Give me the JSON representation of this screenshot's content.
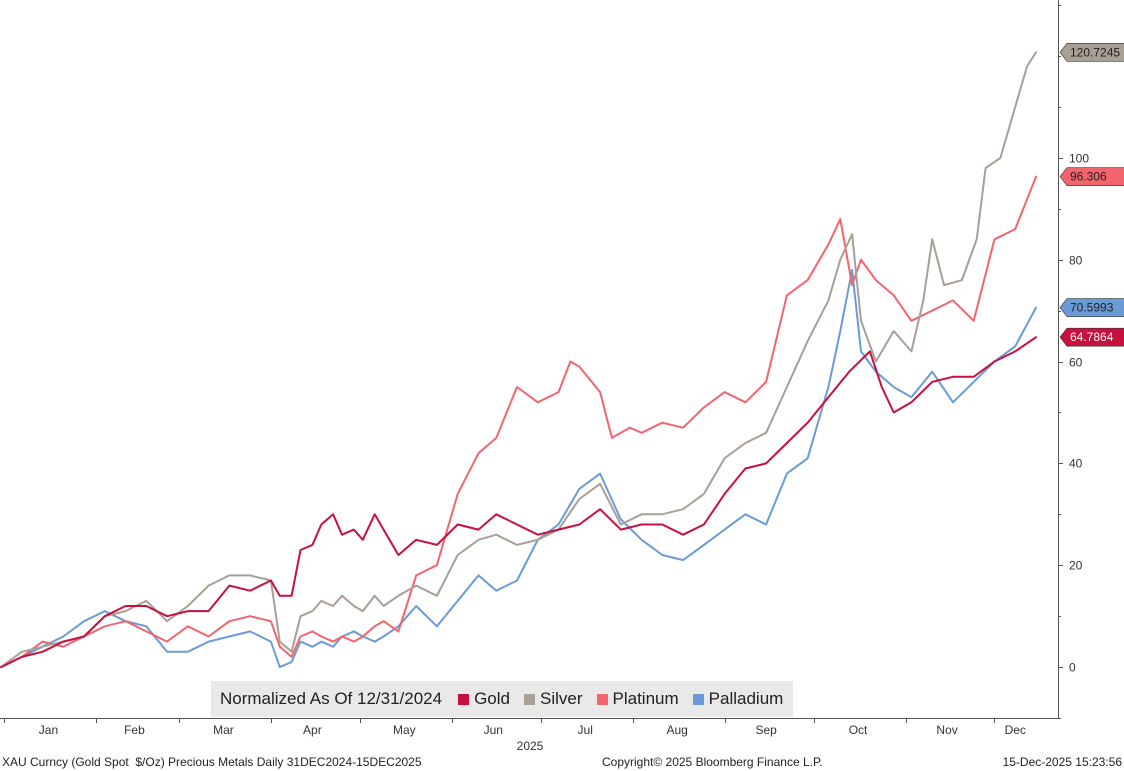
{
  "chart_data": {
    "type": "line",
    "title": "",
    "xlabel": "2025",
    "ylabel": "",
    "normalized_note": "Normalized As Of 12/31/2024",
    "x_range": [
      "2024-12-31",
      "2025-12-15"
    ],
    "ylim": [
      -10,
      131
    ],
    "y_ticks": [
      0,
      20,
      40,
      60,
      80,
      100
    ],
    "x_ticks": [
      {
        "date": "2025-01-16",
        "label": "Jan"
      },
      {
        "date": "2025-02-14",
        "label": "Feb"
      },
      {
        "date": "2025-03-16",
        "label": "Mar"
      },
      {
        "date": "2025-04-15",
        "label": "Apr"
      },
      {
        "date": "2025-05-16",
        "label": "May"
      },
      {
        "date": "2025-06-15",
        "label": "Jun"
      },
      {
        "date": "2025-07-16",
        "label": "Jul"
      },
      {
        "date": "2025-08-16",
        "label": "Aug"
      },
      {
        "date": "2025-09-15",
        "label": "Sep"
      },
      {
        "date": "2025-10-16",
        "label": "Oct"
      },
      {
        "date": "2025-11-15",
        "label": "Nov"
      },
      {
        "date": "2025-12-08",
        "label": "Dec"
      }
    ],
    "month_boundaries": [
      "2025-01-01",
      "2025-02-01",
      "2025-03-01",
      "2025-04-01",
      "2025-05-01",
      "2025-06-01",
      "2025-07-01",
      "2025-08-01",
      "2025-09-01",
      "2025-10-01",
      "2025-11-01",
      "2025-12-01"
    ],
    "grid": false,
    "legend_position": "bottom-center",
    "series": [
      {
        "name": "Gold",
        "color": "#c8103e",
        "end_label": "64.7864",
        "points": [
          [
            "2024-12-31",
            0
          ],
          [
            "2025-01-07",
            2
          ],
          [
            "2025-01-14",
            3
          ],
          [
            "2025-01-21",
            5
          ],
          [
            "2025-01-28",
            6
          ],
          [
            "2025-02-04",
            10
          ],
          [
            "2025-02-11",
            12
          ],
          [
            "2025-02-18",
            12
          ],
          [
            "2025-02-25",
            10
          ],
          [
            "2025-03-04",
            11
          ],
          [
            "2025-03-11",
            11
          ],
          [
            "2025-03-18",
            16
          ],
          [
            "2025-03-25",
            15
          ],
          [
            "2025-04-01",
            17
          ],
          [
            "2025-04-04",
            14
          ],
          [
            "2025-04-08",
            14
          ],
          [
            "2025-04-11",
            23
          ],
          [
            "2025-04-15",
            24
          ],
          [
            "2025-04-18",
            28
          ],
          [
            "2025-04-22",
            30
          ],
          [
            "2025-04-25",
            26
          ],
          [
            "2025-04-29",
            27
          ],
          [
            "2025-05-02",
            25
          ],
          [
            "2025-05-06",
            30
          ],
          [
            "2025-05-09",
            27
          ],
          [
            "2025-05-14",
            22
          ],
          [
            "2025-05-20",
            25
          ],
          [
            "2025-05-27",
            24
          ],
          [
            "2025-06-03",
            28
          ],
          [
            "2025-06-10",
            27
          ],
          [
            "2025-06-16",
            30
          ],
          [
            "2025-06-23",
            28
          ],
          [
            "2025-06-30",
            26
          ],
          [
            "2025-07-07",
            27
          ],
          [
            "2025-07-14",
            28
          ],
          [
            "2025-07-21",
            31
          ],
          [
            "2025-07-28",
            27
          ],
          [
            "2025-08-04",
            28
          ],
          [
            "2025-08-11",
            28
          ],
          [
            "2025-08-18",
            26
          ],
          [
            "2025-08-25",
            28
          ],
          [
            "2025-09-01",
            34
          ],
          [
            "2025-09-08",
            39
          ],
          [
            "2025-09-15",
            40
          ],
          [
            "2025-09-22",
            44
          ],
          [
            "2025-09-29",
            48
          ],
          [
            "2025-10-06",
            53
          ],
          [
            "2025-10-13,",
            58
          ],
          [
            "2025-10-20",
            62
          ],
          [
            "2025-10-24",
            55
          ],
          [
            "2025-10-28",
            50
          ],
          [
            "2025-11-03",
            52
          ],
          [
            "2025-11-10",
            56
          ],
          [
            "2025-11-17",
            57
          ],
          [
            "2025-11-24",
            57
          ],
          [
            "2025-12-01",
            60
          ],
          [
            "2025-12-08",
            62
          ],
          [
            "2025-12-15",
            64.7864
          ]
        ]
      },
      {
        "name": "Silver",
        "color": "#a89f95",
        "end_label": "120.7245",
        "points": [
          [
            "2024-12-31",
            0
          ],
          [
            "2025-01-07",
            3
          ],
          [
            "2025-01-14",
            4
          ],
          [
            "2025-01-21",
            5
          ],
          [
            "2025-01-28",
            6
          ],
          [
            "2025-02-04",
            10
          ],
          [
            "2025-02-11",
            11
          ],
          [
            "2025-02-18",
            13
          ],
          [
            "2025-02-25",
            9
          ],
          [
            "2025-03-04",
            12
          ],
          [
            "2025-03-11",
            16
          ],
          [
            "2025-03-18",
            18
          ],
          [
            "2025-03-25",
            18
          ],
          [
            "2025-04-01",
            17
          ],
          [
            "2025-04-04",
            5
          ],
          [
            "2025-04-08",
            3
          ],
          [
            "2025-04-11",
            10
          ],
          [
            "2025-04-15",
            11
          ],
          [
            "2025-04-18",
            13
          ],
          [
            "2025-04-22",
            12
          ],
          [
            "2025-04-25",
            14
          ],
          [
            "2025-04-29",
            12
          ],
          [
            "2025-05-02",
            11
          ],
          [
            "2025-05-06",
            14
          ],
          [
            "2025-05-09",
            12
          ],
          [
            "2025-05-14",
            14
          ],
          [
            "2025-05-20",
            16
          ],
          [
            "2025-05-27",
            14
          ],
          [
            "2025-06-03",
            22
          ],
          [
            "2025-06-10",
            25
          ],
          [
            "2025-06-16",
            26
          ],
          [
            "2025-06-23",
            24
          ],
          [
            "2025-06-30",
            25
          ],
          [
            "2025-07-07",
            27
          ],
          [
            "2025-07-14",
            33
          ],
          [
            "2025-07-21",
            36
          ],
          [
            "2025-07-28",
            28
          ],
          [
            "2025-08-04",
            30
          ],
          [
            "2025-08-11",
            30
          ],
          [
            "2025-08-18",
            31
          ],
          [
            "2025-08-25",
            34
          ],
          [
            "2025-09-01",
            41
          ],
          [
            "2025-09-08",
            44
          ],
          [
            "2025-09-15",
            46
          ],
          [
            "2025-09-22",
            55
          ],
          [
            "2025-09-29",
            64
          ],
          [
            "2025-10-06",
            72
          ],
          [
            "2025-10-10",
            80
          ],
          [
            "2025-10-14",
            85
          ],
          [
            "2025-10-17",
            68
          ],
          [
            "2025-10-22",
            60
          ],
          [
            "2025-10-28",
            66
          ],
          [
            "2025-11-03",
            62
          ],
          [
            "2025-11-07",
            72
          ],
          [
            "2025-11-10",
            84
          ],
          [
            "2025-11-14",
            75
          ],
          [
            "2025-11-20",
            76
          ],
          [
            "2025-11-25",
            84
          ],
          [
            "2025-11-28",
            98
          ],
          [
            "2025-12-03",
            100
          ],
          [
            "2025-12-08",
            110
          ],
          [
            "2025-12-12",
            118
          ],
          [
            "2025-12-15",
            120.7245
          ]
        ]
      },
      {
        "name": "Platinum",
        "color": "#f2656e",
        "end_label": "96.306",
        "points": [
          [
            "2024-12-31",
            0
          ],
          [
            "2025-01-07",
            2
          ],
          [
            "2025-01-14",
            5
          ],
          [
            "2025-01-21",
            4
          ],
          [
            "2025-01-28",
            6
          ],
          [
            "2025-02-04",
            8
          ],
          [
            "2025-02-11",
            9
          ],
          [
            "2025-02-18",
            7
          ],
          [
            "2025-02-25",
            5
          ],
          [
            "2025-03-04",
            8
          ],
          [
            "2025-03-11",
            6
          ],
          [
            "2025-03-18",
            9
          ],
          [
            "2025-03-25",
            10
          ],
          [
            "2025-04-01",
            9
          ],
          [
            "2025-04-04",
            4
          ],
          [
            "2025-04-08",
            2
          ],
          [
            "2025-04-11",
            6
          ],
          [
            "2025-04-15",
            7
          ],
          [
            "2025-04-18",
            6
          ],
          [
            "2025-04-22",
            5
          ],
          [
            "2025-04-25",
            6
          ],
          [
            "2025-04-29",
            5
          ],
          [
            "2025-05-02",
            6
          ],
          [
            "2025-05-06",
            8
          ],
          [
            "2025-05-09",
            9
          ],
          [
            "2025-05-14",
            7
          ],
          [
            "2025-05-20",
            18
          ],
          [
            "2025-05-27",
            20
          ],
          [
            "2025-06-03",
            34
          ],
          [
            "2025-06-10",
            42
          ],
          [
            "2025-06-16",
            45
          ],
          [
            "2025-06-23",
            55
          ],
          [
            "2025-06-30",
            52
          ],
          [
            "2025-07-07",
            54
          ],
          [
            "2025-07-11",
            60
          ],
          [
            "2025-07-14",
            59
          ],
          [
            "2025-07-21",
            54
          ],
          [
            "2025-07-25",
            45
          ],
          [
            "2025-07-31",
            47
          ],
          [
            "2025-08-04",
            46
          ],
          [
            "2025-08-11",
            48
          ],
          [
            "2025-08-18",
            47
          ],
          [
            "2025-08-25",
            51
          ],
          [
            "2025-09-01",
            54
          ],
          [
            "2025-09-08",
            52
          ],
          [
            "2025-09-15",
            56
          ],
          [
            "2025-09-22",
            73
          ],
          [
            "2025-09-29",
            76
          ],
          [
            "2025-10-06",
            83
          ],
          [
            "2025-10-10",
            88
          ],
          [
            "2025-10-14",
            75
          ],
          [
            "2025-10-17",
            80
          ],
          [
            "2025-10-22",
            76
          ],
          [
            "2025-10-28",
            73
          ],
          [
            "2025-11-03",
            68
          ],
          [
            "2025-11-10",
            70
          ],
          [
            "2025-11-17",
            72
          ],
          [
            "2025-11-24",
            68
          ],
          [
            "2025-12-01",
            84
          ],
          [
            "2025-12-08",
            86
          ],
          [
            "2025-12-15",
            96.306
          ]
        ]
      },
      {
        "name": "Palladium",
        "color": "#6a9bd6",
        "end_label": "70.5993",
        "points": [
          [
            "2024-12-31",
            0
          ],
          [
            "2025-01-07",
            2
          ],
          [
            "2025-01-14",
            4
          ],
          [
            "2025-01-21",
            6
          ],
          [
            "2025-01-28",
            9
          ],
          [
            "2025-02-04",
            11
          ],
          [
            "2025-02-11",
            9
          ],
          [
            "2025-02-18",
            8
          ],
          [
            "2025-02-25",
            3
          ],
          [
            "2025-03-04",
            3
          ],
          [
            "2025-03-11",
            5
          ],
          [
            "2025-03-18",
            6
          ],
          [
            "2025-03-25",
            7
          ],
          [
            "2025-04-01",
            5
          ],
          [
            "2025-04-04",
            0
          ],
          [
            "2025-04-08",
            1
          ],
          [
            "2025-04-11",
            5
          ],
          [
            "2025-04-15",
            4
          ],
          [
            "2025-04-18",
            5
          ],
          [
            "2025-04-22",
            4
          ],
          [
            "2025-04-25",
            6
          ],
          [
            "2025-04-29",
            7
          ],
          [
            "2025-05-02",
            6
          ],
          [
            "2025-05-06",
            5
          ],
          [
            "2025-05-09",
            6
          ],
          [
            "2025-05-14",
            8
          ],
          [
            "2025-05-20",
            12
          ],
          [
            "2025-05-27",
            8
          ],
          [
            "2025-06-03",
            13
          ],
          [
            "2025-06-10",
            18
          ],
          [
            "2025-06-16",
            15
          ],
          [
            "2025-06-23",
            17
          ],
          [
            "2025-06-30",
            25
          ],
          [
            "2025-07-07",
            28
          ],
          [
            "2025-07-14",
            35
          ],
          [
            "2025-07-21",
            38
          ],
          [
            "2025-07-28",
            29
          ],
          [
            "2025-08-04",
            25
          ],
          [
            "2025-08-11",
            22
          ],
          [
            "2025-08-18",
            21
          ],
          [
            "2025-08-25",
            24
          ],
          [
            "2025-09-01",
            27
          ],
          [
            "2025-09-08",
            30
          ],
          [
            "2025-09-15",
            28
          ],
          [
            "2025-09-22",
            38
          ],
          [
            "2025-09-29",
            41
          ],
          [
            "2025-10-06",
            55
          ],
          [
            "2025-10-10",
            66
          ],
          [
            "2025-10-14",
            78
          ],
          [
            "2025-10-17",
            62
          ],
          [
            "2025-10-22",
            58
          ],
          [
            "2025-10-28",
            55
          ],
          [
            "2025-11-03",
            53
          ],
          [
            "2025-11-10",
            58
          ],
          [
            "2025-11-17",
            52
          ],
          [
            "2025-11-24",
            56
          ],
          [
            "2025-12-01",
            60
          ],
          [
            "2025-12-08",
            63
          ],
          [
            "2025-12-15",
            70.5993
          ]
        ]
      }
    ]
  },
  "footer": {
    "left": "XAU Curncy (Gold Spot  $/Oz) Precious Metals Daily 31DEC2024-15DEC2025",
    "center": "Copyright© 2025 Bloomberg Finance L.P.",
    "right": "15-Dec-2025 15:23:56"
  }
}
